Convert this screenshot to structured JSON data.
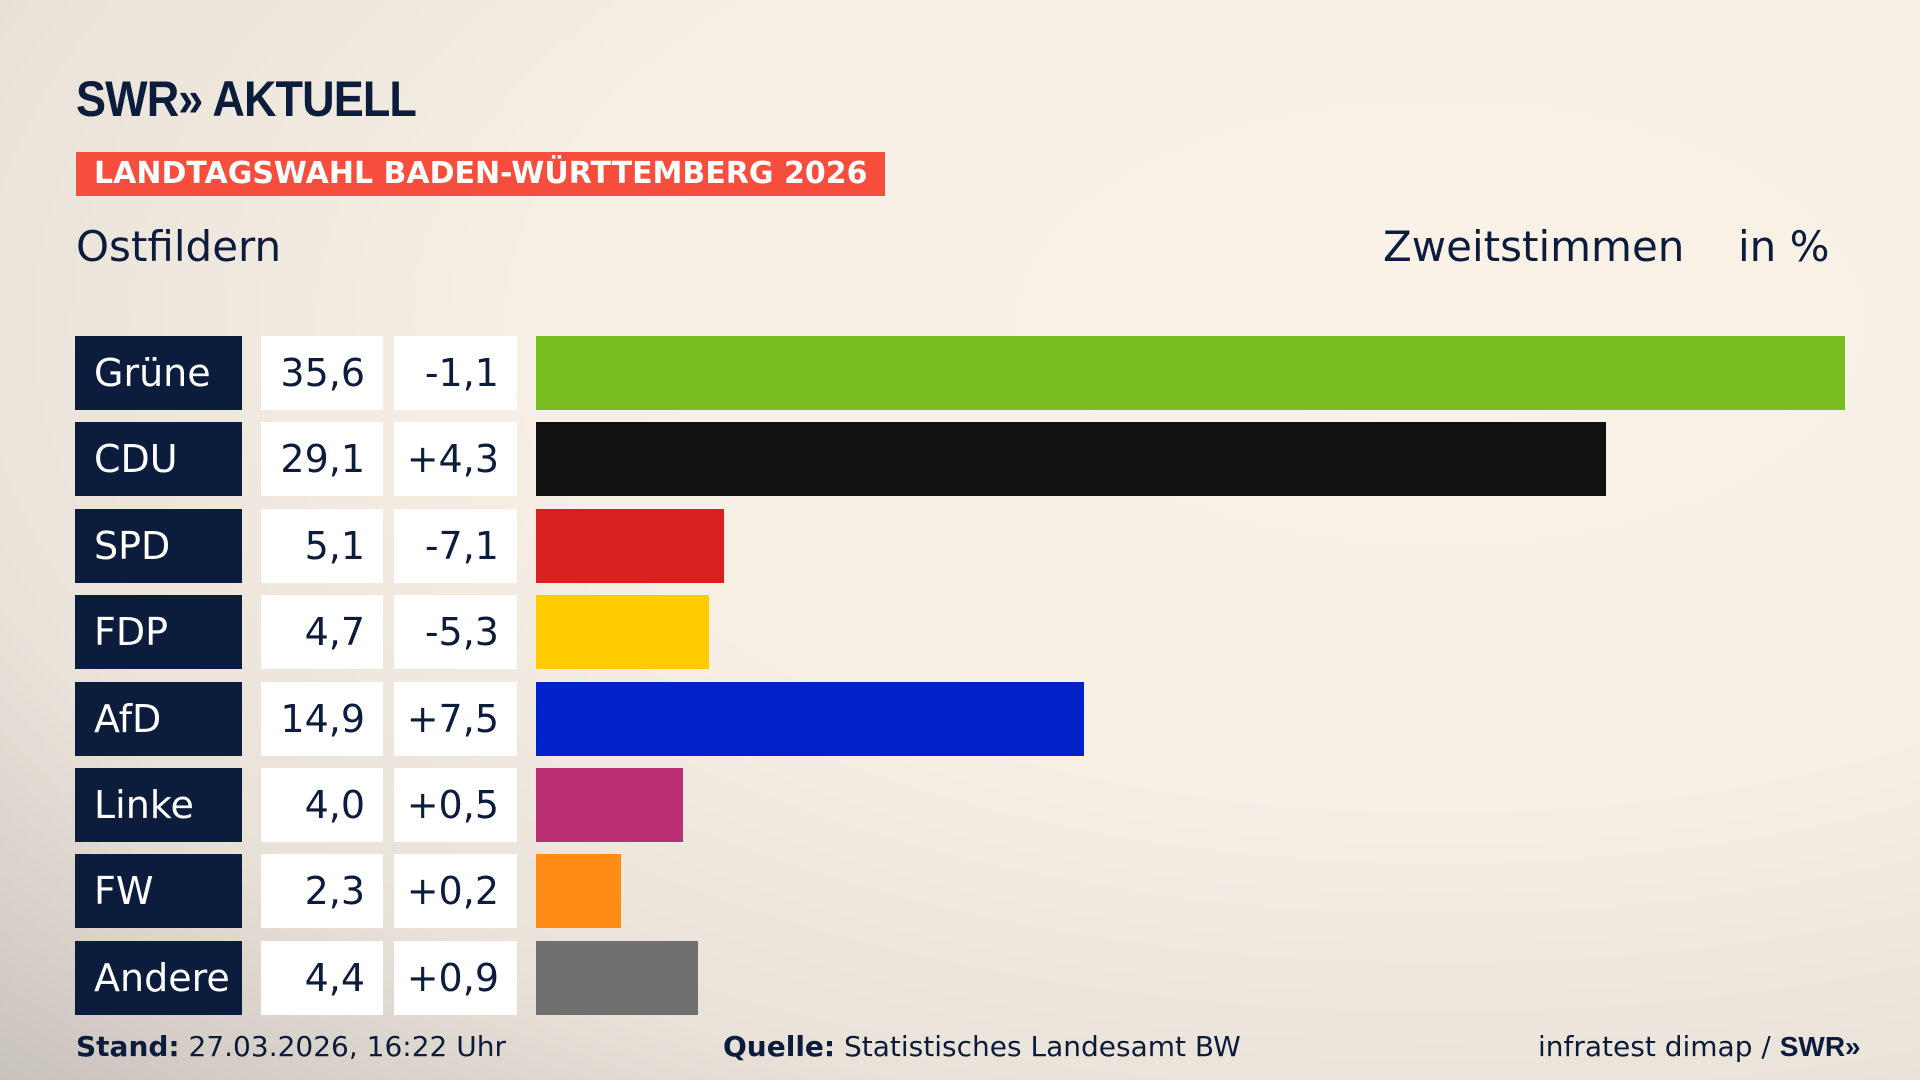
{
  "header": {
    "logo": "SWR» AKTUELL",
    "banner": "LANDTAGSWAHL BADEN-WÜRTTEMBERG 2026",
    "region": "Ostfildern",
    "measure": "Zweitstimmen",
    "unit": "in %"
  },
  "chart_data": {
    "type": "bar",
    "orientation": "horizontal",
    "categories": [
      "Grüne",
      "CDU",
      "SPD",
      "FDP",
      "AfD",
      "Linke",
      "FW",
      "Andere"
    ],
    "values": [
      35.6,
      29.1,
      5.1,
      4.7,
      14.9,
      4.0,
      2.3,
      4.4
    ],
    "value_labels": [
      "35,6",
      "29,1",
      "5,1",
      "4,7",
      "14,9",
      "4,0",
      "2,3",
      "4,4"
    ],
    "changes": [
      -1.1,
      4.3,
      -7.1,
      -5.3,
      7.5,
      0.5,
      0.2,
      0.9
    ],
    "change_labels": [
      "-1,1",
      "+4,3",
      "-7,1",
      "-5,3",
      "+7,5",
      "+0,5",
      "+0,2",
      "+0,9"
    ],
    "colors": [
      "#78be20",
      "#111111",
      "#d7201f",
      "#ffcc00",
      "#0021c8",
      "#bb2f74",
      "#ff8c17",
      "#707070"
    ],
    "xlim": [
      0,
      35.6
    ]
  },
  "footer": {
    "stand_label": "Stand:",
    "stand_value": "27.03.2026, 16:22 Uhr",
    "source_label": "Quelle:",
    "source_value": "Statistisches Landesamt BW",
    "credit": "infratest dimap / ",
    "credit_logo": "SWR»"
  }
}
